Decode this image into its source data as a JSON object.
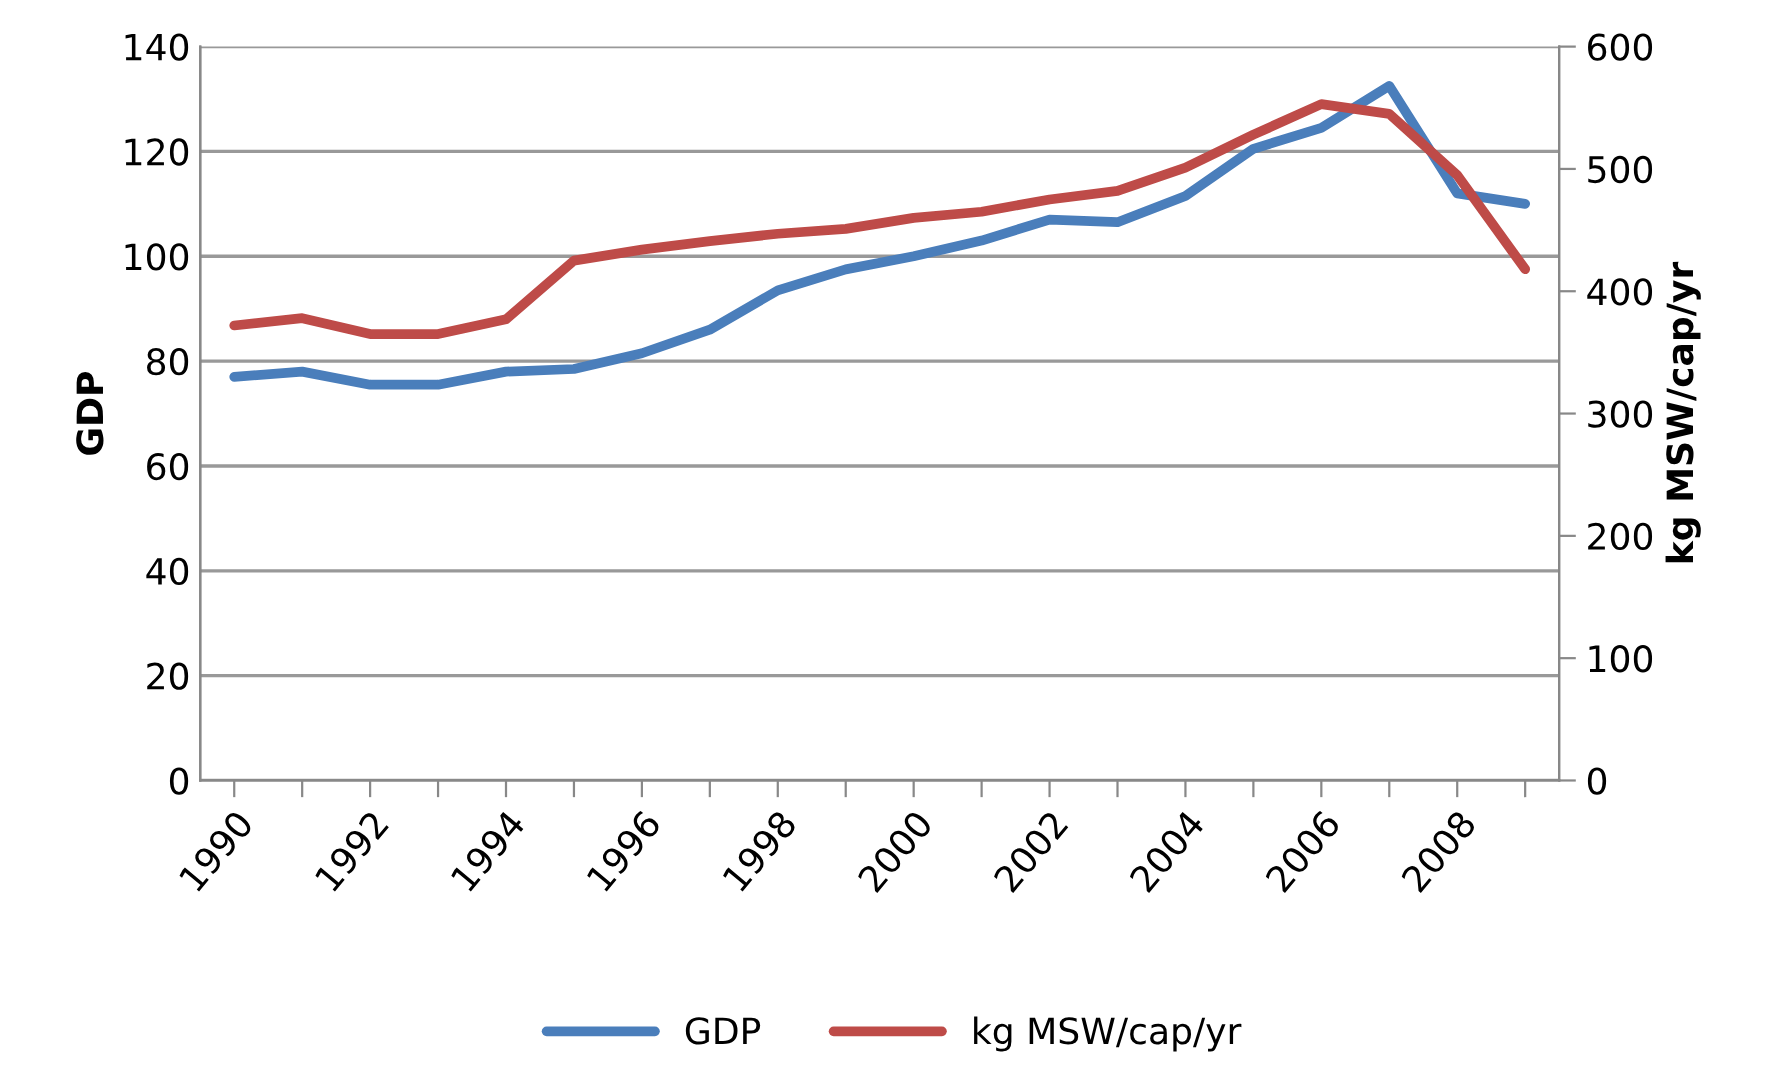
{
  "chart_data": {
    "type": "line",
    "ylabel": "GDP",
    "y2label": "kg MSW/cap/yr",
    "categories": [
      "1990",
      null,
      "1992",
      null,
      "1994",
      null,
      "1996",
      null,
      "1998",
      null,
      "2000",
      null,
      "2002",
      null,
      "2004",
      null,
      "2006",
      null,
      "2008",
      null
    ],
    "series": [
      {
        "name": "GDP",
        "color": "#4a7ebb",
        "values": [
          77,
          78,
          75.5,
          75.5,
          78,
          78.5,
          81.5,
          86,
          93.5,
          97.5,
          100,
          103,
          107,
          106.5,
          111.5,
          120.5,
          124.5,
          132.5,
          112,
          110
        ]
      },
      {
        "name": "kg MSW/cap/yr",
        "color": "#be4b48",
        "axis": "y2",
        "values": [
          372,
          378,
          365,
          365,
          377,
          425,
          434,
          441,
          447,
          451,
          460,
          465,
          475,
          482,
          501,
          528,
          553,
          545,
          495,
          418
        ]
      }
    ],
    "ylim": [
      0,
      140
    ],
    "yticks": [
      0,
      20,
      40,
      60,
      80,
      100,
      120,
      140
    ],
    "y2lim": [
      0,
      600
    ],
    "y2ticks": [
      0,
      100,
      200,
      300,
      400,
      500,
      600
    ],
    "grid": "y",
    "legend": "bottom",
    "marker": "none",
    "line_style": "solid"
  }
}
